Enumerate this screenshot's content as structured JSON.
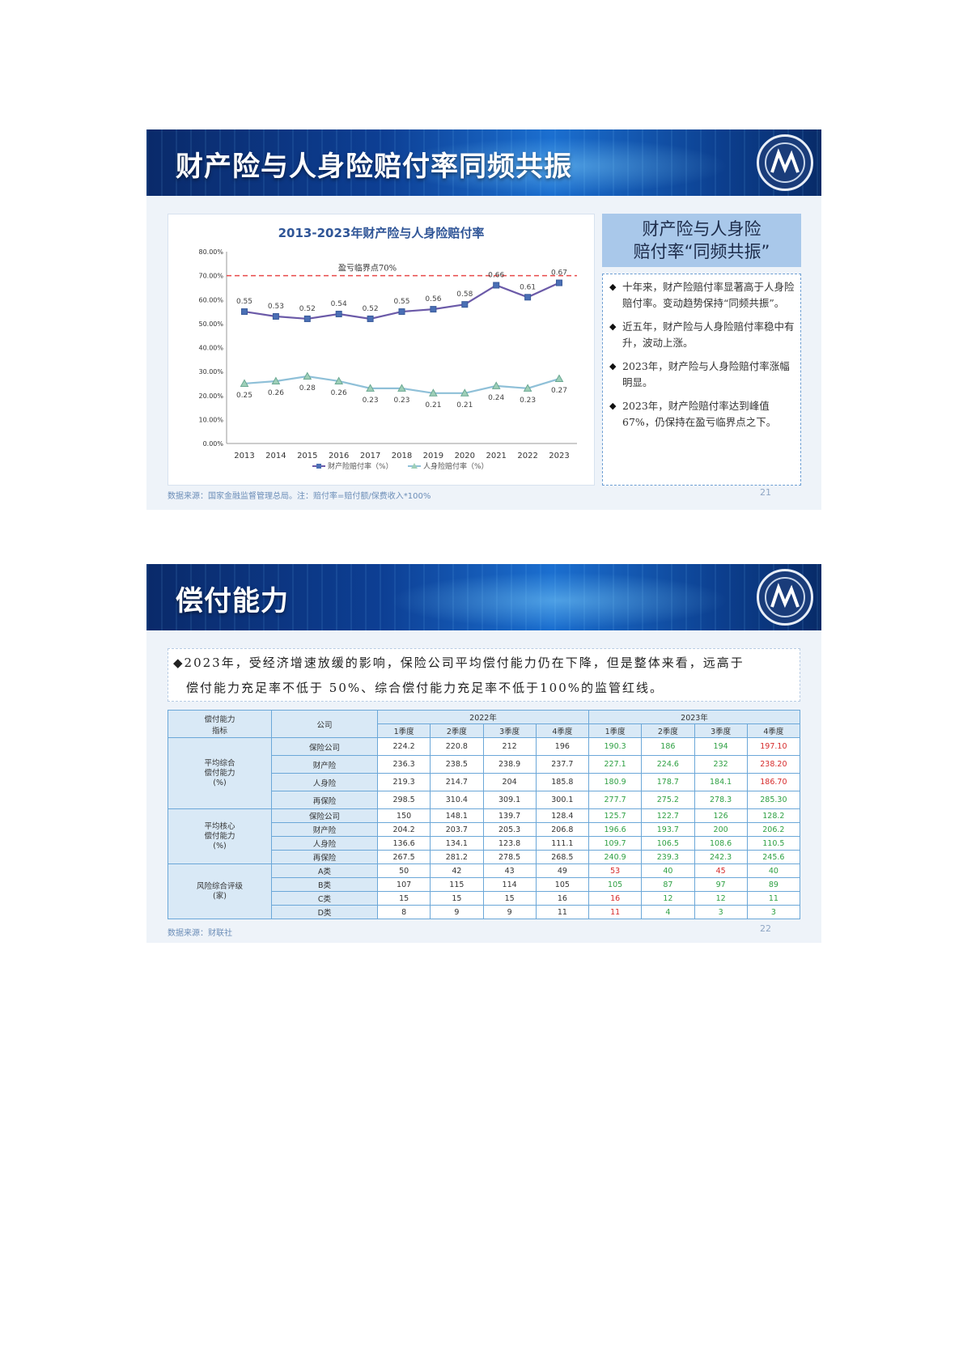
{
  "slide1": {
    "banner_title": "财产险与人身险赔付率同频共振",
    "chart_title": "2013-2023年财产险与人身险赔付率",
    "threshold_label": "盈亏临界点70%",
    "side_title_line1": "财产险与人身险",
    "side_title_line2": "赔付率“同频共振”",
    "bullets": [
      "十年来，财产险赔付率显著高于人身险赔付率。变动趋势保持“同频共振”。",
      "近五年，财产险与人身险赔付率稳中有升，波动上涨。",
      "2023年，财产险与人身险赔付率涨幅明显。",
      "2023年，财产险赔付率达到峰值67%，仍保持在盈亏临界点之下。"
    ],
    "source": "数据来源：国家金融监督管理总局。注：赔付率=赔付额/保费收入*100%",
    "page_number": "21"
  },
  "chart_data": {
    "type": "line",
    "title": "2013-2023年财产险与人身险赔付率",
    "x": [
      "2013",
      "2014",
      "2015",
      "2016",
      "2017",
      "2018",
      "2019",
      "2020",
      "2021",
      "2022",
      "2023"
    ],
    "y_ticks": [
      "0.00%",
      "10.00%",
      "20.00%",
      "30.00%",
      "40.00%",
      "50.00%",
      "60.00%",
      "70.00%",
      "80.00%"
    ],
    "ylim": [
      0,
      0.8
    ],
    "reference_line": {
      "value": 0.7,
      "label": "盈亏临界点70%",
      "color": "#e84a4a",
      "style": "dashed"
    },
    "series": [
      {
        "name": "财产险赔付率（%）",
        "color": "#6b5aa8",
        "marker": "square",
        "values": [
          0.55,
          0.53,
          0.52,
          0.54,
          0.52,
          0.55,
          0.56,
          0.58,
          0.66,
          0.61,
          0.67
        ],
        "labels": [
          "0.55",
          "0.53",
          "0.52",
          "0.54",
          "0.52",
          "0.55",
          "0.56",
          "0.58",
          "0.66",
          "0.61",
          "0.67"
        ]
      },
      {
        "name": "人身险赔付率（%）",
        "color": "#8fc0d8",
        "marker": "triangle",
        "values": [
          0.25,
          0.26,
          0.28,
          0.26,
          0.23,
          0.23,
          0.21,
          0.21,
          0.24,
          0.23,
          0.27
        ],
        "labels": [
          "0.25",
          "0.26",
          "0.28",
          "0.26",
          "0.23",
          "0.23",
          "0.21",
          "0.21",
          "0.24",
          "0.23",
          "0.27"
        ]
      }
    ],
    "legend_position": "bottom"
  },
  "slide2": {
    "banner_title": "偿付能力",
    "intro_line1": "◆2023年，受经济增速放缓的影响，保险公司平均偿付能力仍在下降，但是整体来看，远高于",
    "intro_line2": "偿付能力充足率不低于 50%、综合偿付能力充足率不低于100%的监管红线。",
    "table": {
      "h_indicator": "偿付能力\n指标",
      "h_company": "公司",
      "year_2022": "2022年",
      "year_2023": "2023年",
      "quarters": [
        "1季度",
        "2季度",
        "3季度",
        "4季度",
        "1季度",
        "2季度",
        "3季度",
        "4季度"
      ],
      "groups": [
        {
          "label": "平均综合\n偿付能力\n(%)",
          "rows": [
            {
              "company": "保险公司",
              "values": [
                "224.2",
                "220.8",
                "212",
                "196",
                "190.3",
                "186",
                "194",
                "197.10"
              ],
              "colors": [
                "",
                "",
                "",
                "",
                "g",
                "g",
                "g",
                "r"
              ]
            },
            {
              "company": "财产险",
              "values": [
                "236.3",
                "238.5",
                "238.9",
                "237.7",
                "227.1",
                "224.6",
                "232",
                "238.20"
              ],
              "colors": [
                "",
                "",
                "",
                "",
                "g",
                "g",
                "g",
                "r"
              ]
            },
            {
              "company": "人身险",
              "values": [
                "219.3",
                "214.7",
                "204",
                "185.8",
                "180.9",
                "178.7",
                "184.1",
                "186.70"
              ],
              "colors": [
                "",
                "",
                "",
                "",
                "g",
                "g",
                "g",
                "r"
              ]
            },
            {
              "company": "再保险",
              "values": [
                "298.5",
                "310.4",
                "309.1",
                "300.1",
                "277.7",
                "275.2",
                "278.3",
                "285.30"
              ],
              "colors": [
                "",
                "",
                "",
                "",
                "g",
                "g",
                "g",
                "g"
              ]
            }
          ]
        },
        {
          "label": "平均核心\n偿付能力\n(%)",
          "rows": [
            {
              "company": "保险公司",
              "values": [
                "150",
                "148.1",
                "139.7",
                "128.4",
                "125.7",
                "122.7",
                "126",
                "128.2"
              ],
              "colors": [
                "",
                "",
                "",
                "",
                "g",
                "g",
                "g",
                "g"
              ]
            },
            {
              "company": "财产险",
              "values": [
                "204.2",
                "203.7",
                "205.3",
                "206.8",
                "196.6",
                "193.7",
                "200",
                "206.2"
              ],
              "colors": [
                "",
                "",
                "",
                "",
                "g",
                "g",
                "g",
                "g"
              ]
            },
            {
              "company": "人身险",
              "values": [
                "136.6",
                "134.1",
                "123.8",
                "111.1",
                "109.7",
                "106.5",
                "108.6",
                "110.5"
              ],
              "colors": [
                "",
                "",
                "",
                "",
                "g",
                "g",
                "g",
                "g"
              ]
            },
            {
              "company": "再保险",
              "values": [
                "267.5",
                "281.2",
                "278.5",
                "268.5",
                "240.9",
                "239.3",
                "242.3",
                "245.6"
              ],
              "colors": [
                "",
                "",
                "",
                "",
                "g",
                "g",
                "g",
                "g"
              ]
            }
          ]
        },
        {
          "label": "风险综合评级\n(家)",
          "rows": [
            {
              "company": "A类",
              "values": [
                "50",
                "42",
                "43",
                "49",
                "53",
                "40",
                "45",
                "40"
              ],
              "colors": [
                "",
                "",
                "",
                "",
                "r",
                "g",
                "r",
                "g"
              ]
            },
            {
              "company": "B类",
              "values": [
                "107",
                "115",
                "114",
                "105",
                "105",
                "87",
                "97",
                "89"
              ],
              "colors": [
                "",
                "",
                "",
                "",
                "g",
                "g",
                "g",
                "g"
              ]
            },
            {
              "company": "C类",
              "values": [
                "15",
                "15",
                "15",
                "16",
                "16",
                "12",
                "12",
                "11"
              ],
              "colors": [
                "",
                "",
                "",
                "",
                "r",
                "g",
                "g",
                "g"
              ]
            },
            {
              "company": "D类",
              "values": [
                "8",
                "9",
                "9",
                "11",
                "11",
                "4",
                "3",
                "3"
              ],
              "colors": [
                "",
                "",
                "",
                "",
                "r",
                "g",
                "g",
                "g"
              ]
            }
          ]
        }
      ]
    },
    "source": "数据来源：财联社",
    "page_number": "22"
  },
  "colors": {
    "green": "#2ea043",
    "red": "#d62b2b",
    "banner_blue": "#0d3f94"
  }
}
